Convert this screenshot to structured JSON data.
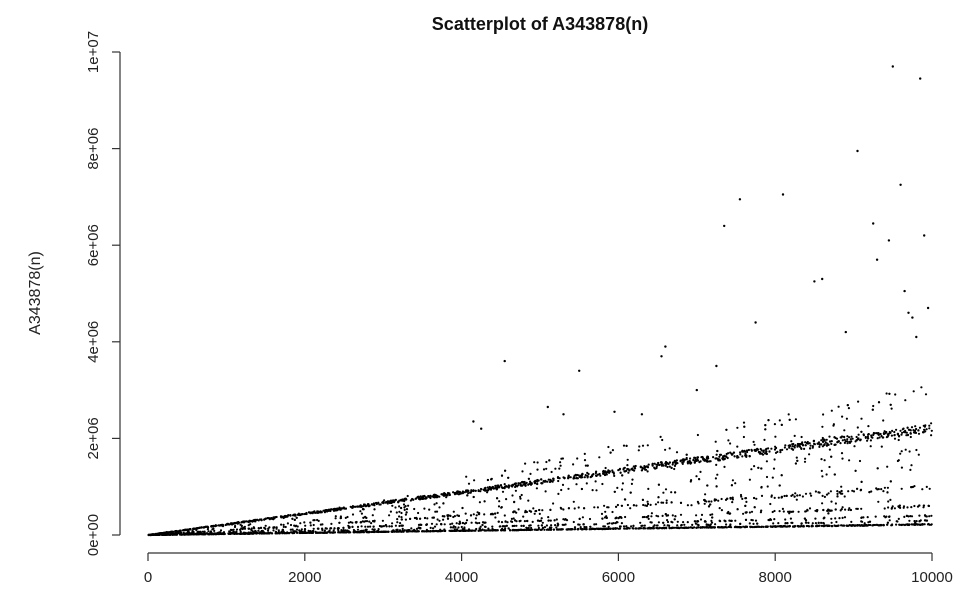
{
  "chart_data": {
    "type": "scatter",
    "title": "Scatterplot of A343878(n)",
    "xlabel": "",
    "ylabel": "A343878(n)",
    "xlim": [
      0,
      10000
    ],
    "ylim": [
      0,
      10000000
    ],
    "x_ticks": [
      0,
      2000,
      4000,
      6000,
      8000,
      10000
    ],
    "x_tick_labels": [
      "0",
      "2000",
      "4000",
      "6000",
      "8000",
      "10000"
    ],
    "y_ticks": [
      0,
      2000000,
      4000000,
      6000000,
      8000000,
      10000000
    ],
    "y_tick_labels": [
      "0e+00",
      "2e+06",
      "4e+06",
      "6e+06",
      "8e+06",
      "1e+07"
    ],
    "grid": false,
    "marker_color": "#000000",
    "density_bands": [
      {
        "slope": 221,
        "weight": 0.3
      },
      {
        "slope": 100,
        "weight": 0.06
      },
      {
        "slope": 60,
        "weight": 0.06
      },
      {
        "slope": 40,
        "weight": 0.06
      },
      {
        "slope": 30,
        "weight": 0.05
      },
      {
        "slope": 22,
        "weight": 0.3
      }
    ],
    "outliers": [
      {
        "x": 4150,
        "y": 2350000
      },
      {
        "x": 4250,
        "y": 2200000
      },
      {
        "x": 4550,
        "y": 3600000
      },
      {
        "x": 5100,
        "y": 2650000
      },
      {
        "x": 5300,
        "y": 2500000
      },
      {
        "x": 5500,
        "y": 3400000
      },
      {
        "x": 5950,
        "y": 2550000
      },
      {
        "x": 6300,
        "y": 2500000
      },
      {
        "x": 6550,
        "y": 3700000
      },
      {
        "x": 6600,
        "y": 3900000
      },
      {
        "x": 7000,
        "y": 3000000
      },
      {
        "x": 7250,
        "y": 3500000
      },
      {
        "x": 7350,
        "y": 6400000
      },
      {
        "x": 7550,
        "y": 6950000
      },
      {
        "x": 7750,
        "y": 4400000
      },
      {
        "x": 8100,
        "y": 7050000
      },
      {
        "x": 8500,
        "y": 5250000
      },
      {
        "x": 8600,
        "y": 5300000
      },
      {
        "x": 8900,
        "y": 4200000
      },
      {
        "x": 9050,
        "y": 7950000
      },
      {
        "x": 9250,
        "y": 6450000
      },
      {
        "x": 9300,
        "y": 5700000
      },
      {
        "x": 9450,
        "y": 6100000
      },
      {
        "x": 9500,
        "y": 9700000
      },
      {
        "x": 9600,
        "y": 7250000
      },
      {
        "x": 9650,
        "y": 5050000
      },
      {
        "x": 9750,
        "y": 4500000
      },
      {
        "x": 9850,
        "y": 9450000
      },
      {
        "x": 9900,
        "y": 6200000
      },
      {
        "x": 9950,
        "y": 4700000
      },
      {
        "x": 9700,
        "y": 4600000
      },
      {
        "x": 9800,
        "y": 4100000
      }
    ]
  }
}
